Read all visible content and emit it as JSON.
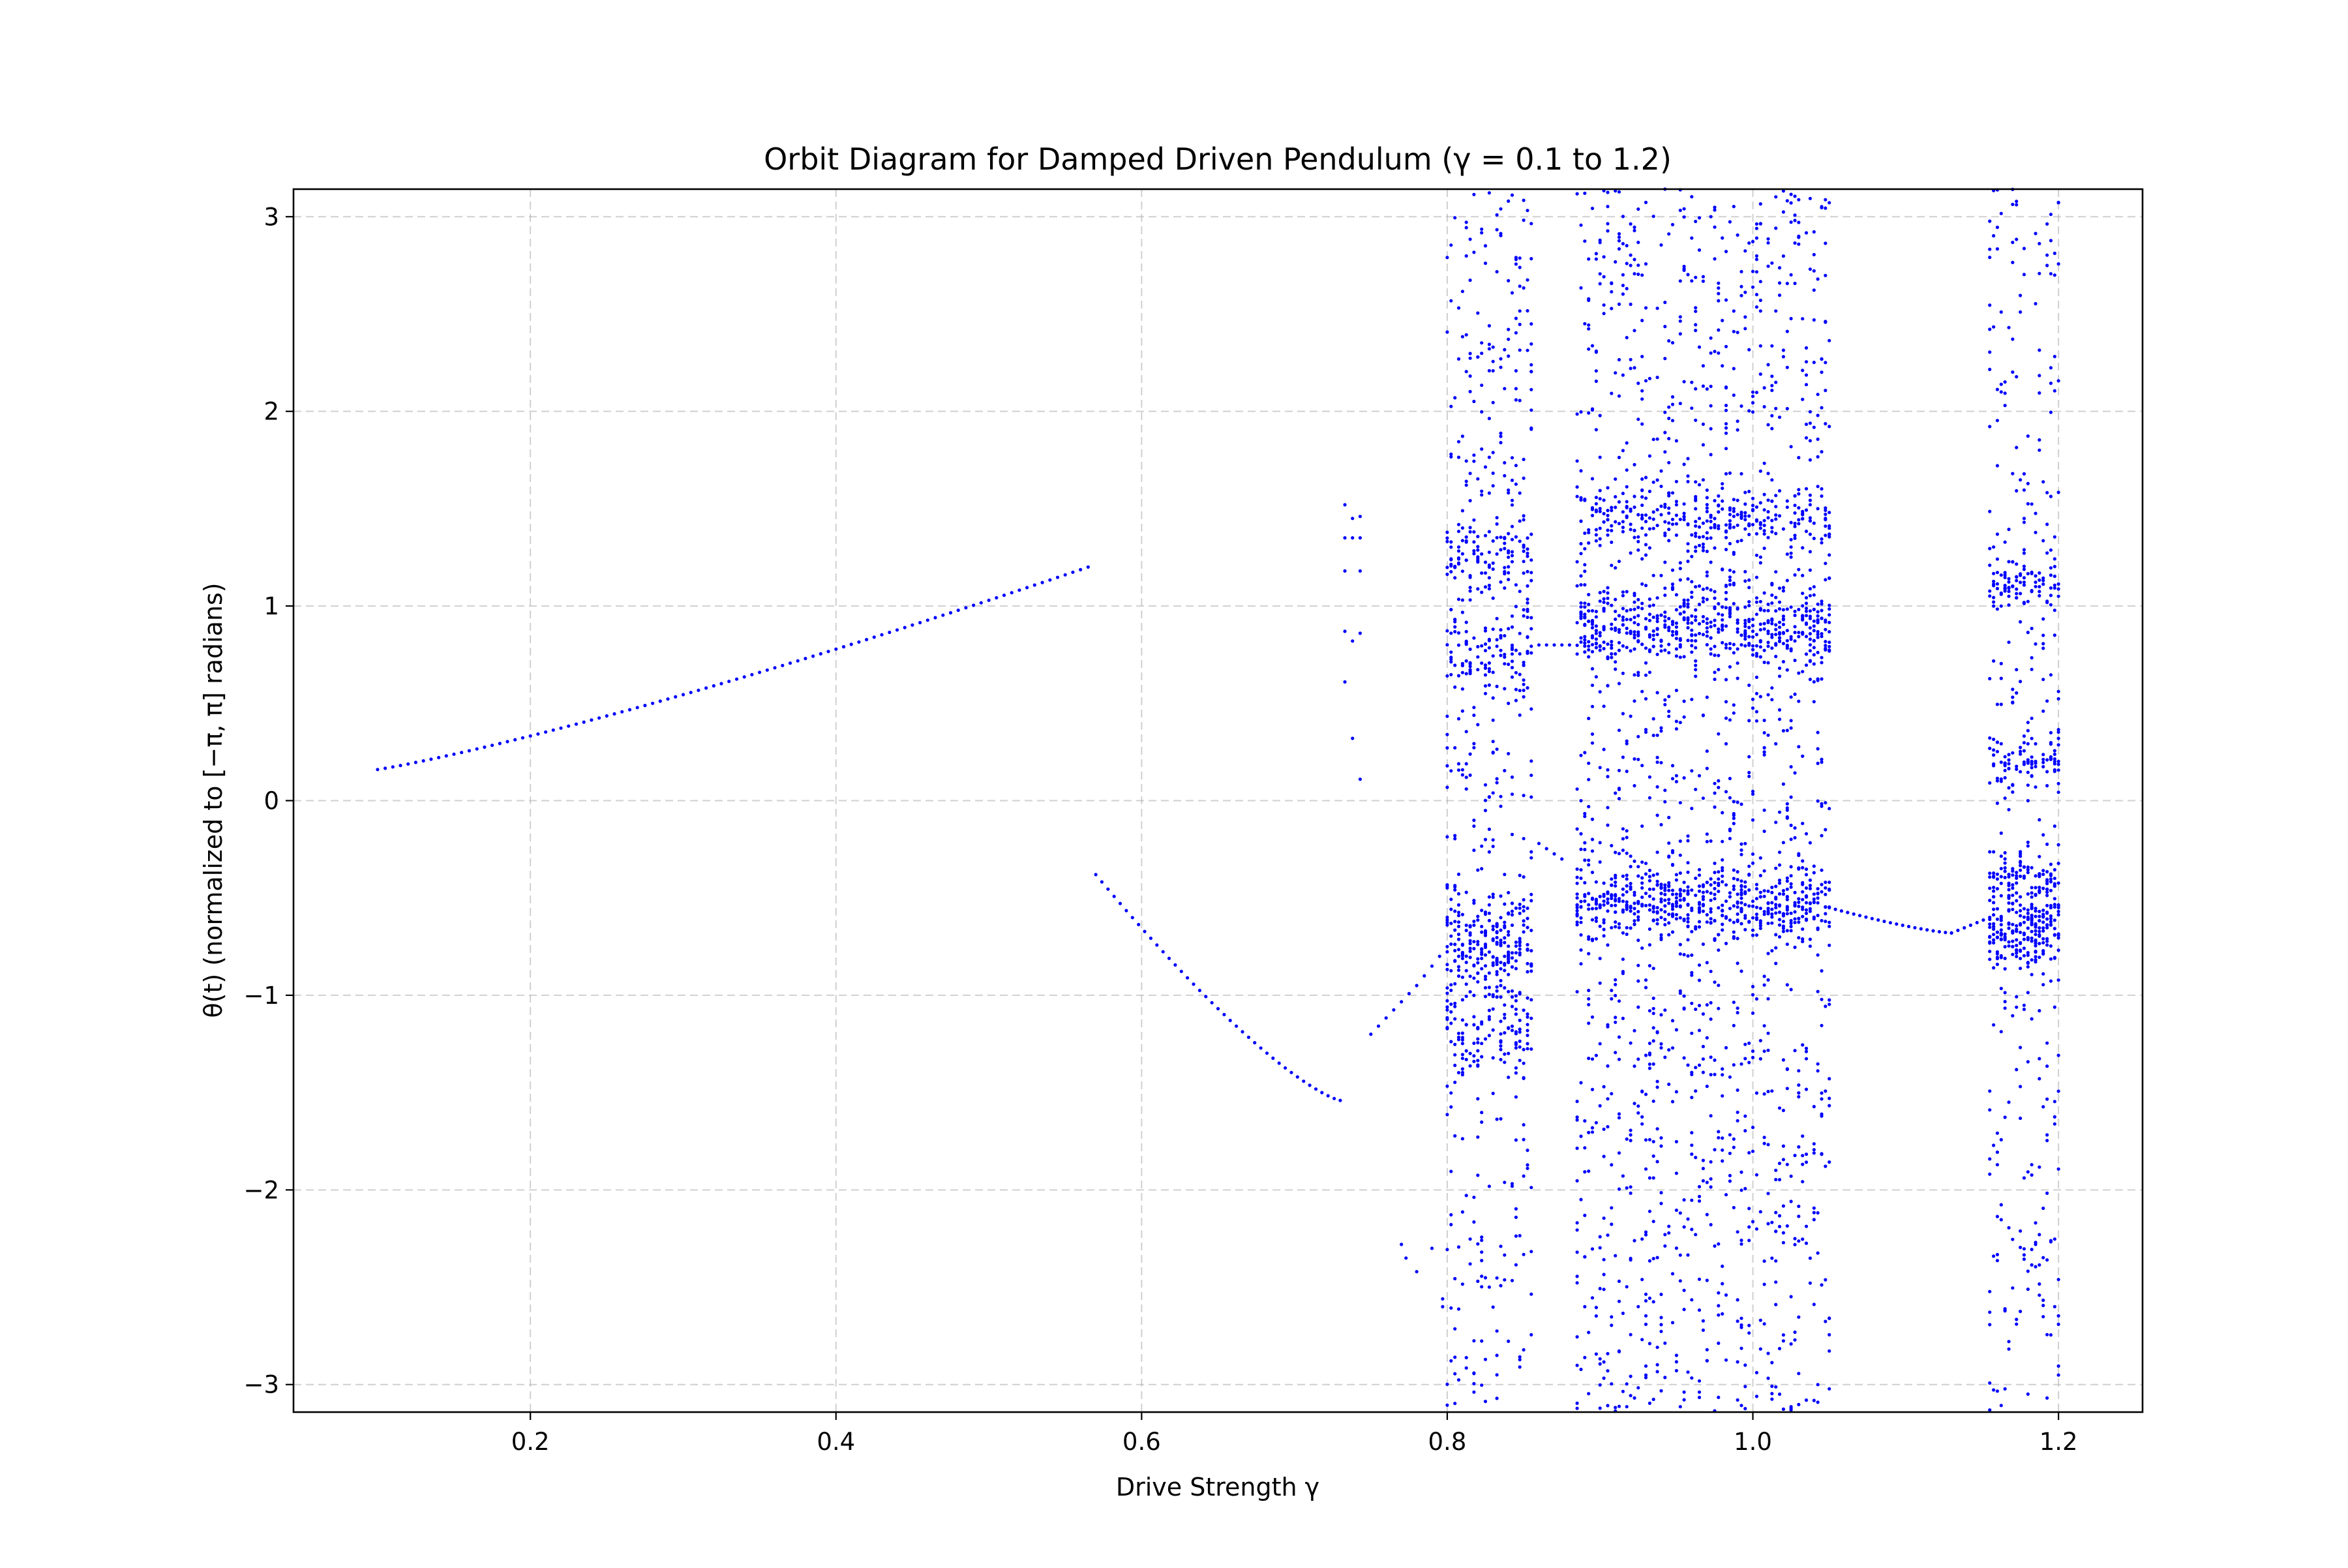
{
  "chart_data": {
    "type": "scatter",
    "title": "Orbit Diagram for Damped Driven Pendulum (γ = 0.1 to 1.2)",
    "xlabel": "Drive Strength γ",
    "ylabel": "θ(t) (normalized to [−π, π] radians)",
    "xlim": [
      0.045,
      1.255
    ],
    "ylim": [
      -3.1416,
      3.1416
    ],
    "xticks": [
      0.2,
      0.4,
      0.6,
      0.8,
      1.0,
      1.2
    ],
    "xtick_labels": [
      "0.2",
      "0.4",
      "0.6",
      "0.8",
      "1.0",
      "1.2"
    ],
    "yticks": [
      -3,
      -2,
      -1,
      0,
      1,
      2,
      3
    ],
    "ytick_labels": [
      "−3",
      "−2",
      "−1",
      "0",
      "1",
      "2",
      "3"
    ],
    "grid": true,
    "grid_style": "dashed",
    "marker_color": "#0000ff",
    "series": [
      {
        "segments": [
          {
            "x_from": 0.1,
            "x_to": 0.565,
            "step": 0.005,
            "y_from": 0.16,
            "y_to": 1.2,
            "shape": "convex"
          },
          {
            "x_from": 0.57,
            "x_to": 0.73,
            "step": 0.004,
            "y_from": -0.38,
            "y_to": -1.54,
            "shape": "concave"
          },
          {
            "x_from": 0.75,
            "x_to": 0.78,
            "step": 0.005,
            "y_from": -1.2,
            "y_to": -0.95,
            "shape": "linear"
          },
          {
            "x_from": 0.785,
            "x_to": 0.8,
            "step": 0.005,
            "y_from": -0.9,
            "y_to": -0.75,
            "shape": "linear"
          },
          {
            "x_from": 0.86,
            "x_to": 0.88,
            "step": 0.005,
            "y_from": 0.8,
            "y_to": 0.8,
            "shape": "linear"
          },
          {
            "x_from": 0.86,
            "x_to": 0.875,
            "step": 0.005,
            "y_from": -0.22,
            "y_to": -0.3,
            "shape": "linear"
          },
          {
            "x_from": 1.05,
            "x_to": 1.13,
            "step": 0.004,
            "y_from": -0.55,
            "y_to": -0.68,
            "shape": "concave"
          },
          {
            "x_from": 1.13,
            "x_to": 1.155,
            "step": 0.004,
            "y_from": -0.68,
            "y_to": -0.6,
            "shape": "linear"
          }
        ],
        "scattered_points": [
          [
            0.733,
            1.52
          ],
          [
            0.733,
            1.35
          ],
          [
            0.733,
            1.18
          ],
          [
            0.733,
            0.87
          ],
          [
            0.733,
            0.61
          ],
          [
            0.738,
            1.45
          ],
          [
            0.738,
            1.35
          ],
          [
            0.738,
            0.82
          ],
          [
            0.738,
            0.32
          ],
          [
            0.743,
            1.46
          ],
          [
            0.743,
            1.35
          ],
          [
            0.743,
            1.18
          ],
          [
            0.743,
            0.86
          ],
          [
            0.743,
            0.11
          ],
          [
            0.77,
            -2.28
          ],
          [
            0.773,
            -2.35
          ],
          [
            0.78,
            -2.42
          ],
          [
            0.79,
            -2.3
          ],
          [
            0.797,
            -2.56
          ],
          [
            0.797,
            -2.6
          ]
        ],
        "chaotic_bands": [
          {
            "x_from": 0.8,
            "x_to": 0.855,
            "step": 0.0025,
            "count": 40,
            "attractors": [
              -0.85,
              -1.2,
              0.75,
              1.25,
              -0.65
            ],
            "spread": 0.35,
            "wide_frac": 0.45
          },
          {
            "x_from": 0.885,
            "x_to": 1.05,
            "step": 0.0025,
            "count": 40,
            "attractors": [
              0.85,
              -0.55,
              0.95,
              1.45,
              -0.5
            ],
            "spread": 0.3,
            "wide_frac": 0.55
          },
          {
            "x_from": 1.155,
            "x_to": 1.2,
            "step": 0.0025,
            "count": 40,
            "attractors": [
              -0.65,
              -0.4,
              1.1,
              0.2,
              -0.7
            ],
            "spread": 0.25,
            "wide_frac": 0.4
          }
        ]
      }
    ]
  }
}
